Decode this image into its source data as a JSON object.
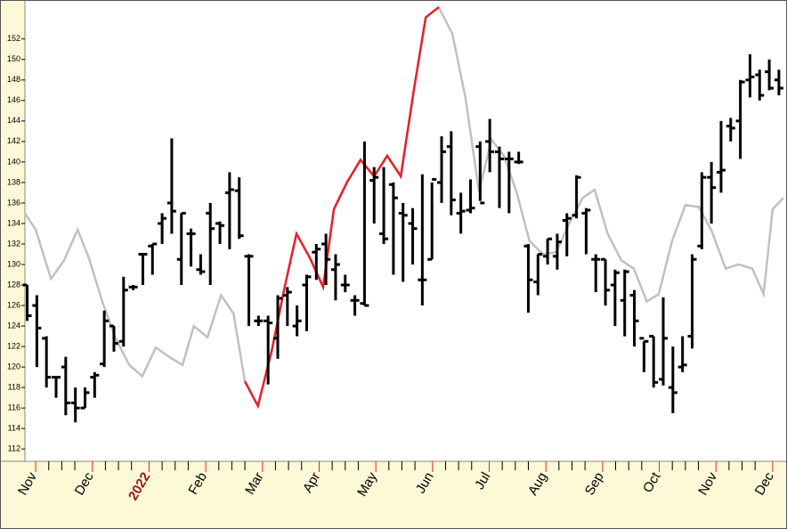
{
  "chart_data": {
    "type": "ohlc",
    "color": "#000000",
    "x": [
      -0.15,
      0.02,
      0.19,
      0.36,
      0.53,
      0.7,
      0.87,
      1.04,
      1.21,
      1.38,
      1.55,
      1.72,
      1.89,
      2.06,
      2.23,
      2.4,
      2.57,
      2.74,
      2.91,
      3.08,
      3.25,
      3.42,
      3.59,
      3.76,
      3.93,
      4.1,
      4.27,
      4.44,
      4.61,
      4.78,
      4.95,
      5.12,
      5.29,
      5.46,
      5.63,
      5.8,
      5.97,
      6.14,
      6.31,
      6.48,
      6.65,
      6.82,
      6.99,
      7.16,
      7.33,
      7.5,
      7.67,
      7.84,
      8.01,
      8.18,
      8.35,
      8.52,
      8.69,
      8.86,
      9.03,
      9.2,
      9.37,
      9.54,
      9.71,
      9.88,
      10.05,
      10.22,
      10.39,
      10.56,
      10.73,
      10.9,
      11.07,
      11.24,
      11.41,
      11.58,
      11.75,
      11.92,
      12.09,
      12.26,
      12.43,
      12.6,
      12.77,
      12.94,
      13.11
    ],
    "open": [
      128,
      126,
      122.8,
      119,
      120,
      116.5,
      116,
      119,
      120.3,
      124,
      122.5,
      127.8,
      131,
      131.8,
      134,
      136,
      130.5,
      133,
      129.5,
      135,
      134,
      137,
      137.2,
      130.8,
      124.5,
      124.5,
      122.8,
      127,
      124,
      128,
      131.2,
      132,
      129.5,
      128,
      126.5,
      126.2,
      138.2,
      133,
      137.8,
      135,
      134,
      128.5,
      130.5,
      138,
      141.5,
      135,
      135.3,
      141.5,
      142,
      141,
      140.3,
      140,
      131.8,
      128.3,
      130.8,
      130.8,
      134.3,
      134.8,
      135,
      130.5,
      130.5,
      128,
      126.5,
      127,
      122.8,
      123,
      118.8,
      118,
      120,
      123,
      131.8,
      138.5,
      139,
      143.5,
      144,
      148,
      148.5,
      148.8,
      148
    ],
    "high": [
      128,
      127,
      123,
      119,
      121,
      118,
      118,
      119.5,
      125.5,
      124,
      128.8,
      128,
      131,
      132,
      135,
      142.3,
      135,
      133.5,
      131,
      136,
      134.2,
      139,
      138.5,
      131,
      125,
      125,
      127,
      127.8,
      126,
      129,
      132,
      133,
      131,
      129,
      127,
      142,
      139.5,
      139.5,
      138,
      136,
      135.5,
      138.8,
      138,
      142.5,
      143,
      137,
      138.3,
      142,
      144.2,
      141.5,
      141,
      141,
      132,
      131,
      132.5,
      133,
      135,
      138.7,
      135.5,
      131,
      130.5,
      129.5,
      129.5,
      127.5,
      122.5,
      123,
      126.8,
      122,
      123,
      131,
      139,
      140,
      144,
      144.3,
      148,
      150.5,
      149,
      150,
      149
    ],
    "low": [
      124.5,
      120,
      118,
      117,
      115.3,
      114.6,
      116,
      117,
      120,
      121.5,
      122,
      127.5,
      128,
      129,
      132,
      133,
      128,
      129.8,
      129,
      128,
      132,
      131.5,
      132.5,
      124,
      124,
      118.3,
      120.8,
      124,
      123,
      123.5,
      128.5,
      128,
      126.5,
      127.3,
      125,
      126,
      134,
      132,
      129,
      128.3,
      130,
      126,
      130.5,
      136,
      134.8,
      133,
      135,
      136.2,
      139,
      135.5,
      135,
      139.8,
      125.3,
      127,
      130,
      129.5,
      130.8,
      134.5,
      131,
      127.3,
      126,
      124,
      123,
      122,
      119.5,
      118,
      118.2,
      115.5,
      119.5,
      121.8,
      131.5,
      134,
      137,
      142,
      140.3,
      146.3,
      146,
      147,
      146.5
    ],
    "close": [
      125,
      123.8,
      119,
      119,
      116.5,
      116,
      117.5,
      119.2,
      124.5,
      122.3,
      127.5,
      127.8,
      131,
      132,
      134.5,
      135.2,
      135,
      133,
      129.3,
      133.5,
      133.8,
      137.3,
      132.8,
      130.8,
      124.5,
      124.3,
      126.7,
      127.3,
      124.5,
      128.8,
      131.5,
      130.5,
      130,
      128,
      126.5,
      126,
      138.5,
      132.5,
      136.5,
      134.8,
      133.5,
      128.5,
      138.3,
      141,
      136.3,
      135.2,
      135.5,
      136,
      141,
      140.3,
      140.3,
      140,
      128.5,
      131,
      132.5,
      132.2,
      134.5,
      138.5,
      135.3,
      130.5,
      127.5,
      129.2,
      129.3,
      124.5,
      122.5,
      118.5,
      122.8,
      117.5,
      120.2,
      130.5,
      138.5,
      137.5,
      139.2,
      143.3,
      147.8,
      148.3,
      146.5,
      147.2,
      147.2
    ],
    "overlays": [
      {
        "color": "#c0c0c0",
        "x": [
          -0.19,
          0,
          0.27,
          0.5,
          0.74,
          0.94,
          1.18,
          1.41,
          1.65,
          1.88,
          2.12,
          2.35,
          2.59,
          2.79,
          3.03,
          3.27,
          3.49,
          3.69,
          3.92,
          4.16,
          4.4,
          4.6,
          4.84,
          5.07,
          5.26,
          5.49,
          5.73,
          5.97,
          6.2,
          6.44,
          6.67,
          6.88,
          7.11,
          7.35,
          7.58,
          7.82,
          8.04,
          8.26,
          8.48,
          8.71,
          8.95,
          9.18,
          9.42,
          9.65,
          9.86,
          10.09,
          10.33,
          10.55,
          10.78,
          10.99,
          11.22,
          11.46,
          11.7,
          11.93,
          12.17,
          12.4,
          12.64,
          12.84,
          13,
          13.19
        ],
        "values": [
          135,
          133.4,
          128.6,
          130.4,
          133.4,
          130.6,
          126.3,
          122.8,
          120.2,
          119.1,
          121.9,
          121,
          120.2,
          124,
          122.9,
          127,
          125.2,
          118.6,
          116.2,
          121.5,
          128,
          133,
          130.6,
          127.8,
          135.4,
          138,
          140.2,
          138.6,
          140.6,
          138.6,
          147,
          154.1,
          155.1,
          152.5,
          146.3,
          137.1,
          142.2,
          140.6,
          137.1,
          132.3,
          131,
          131.2,
          134.1,
          136.5,
          137.3,
          133,
          130.4,
          129.6,
          126.4,
          127.1,
          132.2,
          135.8,
          135.6,
          133.2,
          129.6,
          130,
          129.6,
          127.1,
          135.4,
          136.5
        ]
      },
      {
        "color": "#e8202a",
        "x": [
          3.69,
          3.92,
          4.16,
          4.4,
          4.6,
          4.84,
          5.07,
          5.26,
          5.49,
          5.73,
          5.97,
          6.2,
          6.44,
          6.67,
          6.88,
          7.11
        ],
        "values": [
          118.6,
          116.2,
          121.5,
          128,
          133,
          130.6,
          127.8,
          135.4,
          138,
          140.2,
          138.6,
          140.6,
          138.6,
          147,
          154.1,
          155.1
        ]
      }
    ],
    "xlim": [
      -0.19,
      13.19
    ],
    "xticks": [
      {
        "value": 0,
        "label": "Nov"
      },
      {
        "value": 1,
        "label": "Dec"
      },
      {
        "value": 2,
        "label": "2022",
        "color": "#8b1a1a"
      },
      {
        "value": 3,
        "label": "Feb"
      },
      {
        "value": 4,
        "label": "Mar"
      },
      {
        "value": 5,
        "label": "Apr"
      },
      {
        "value": 6,
        "label": "May"
      },
      {
        "value": 7,
        "label": "Jun"
      },
      {
        "value": 8,
        "label": "Jul"
      },
      {
        "value": 9,
        "label": "Aug"
      },
      {
        "value": 10,
        "label": "Sep"
      },
      {
        "value": 11,
        "label": "Oct"
      },
      {
        "value": 12,
        "label": "Nov"
      },
      {
        "value": 13,
        "label": "Dec"
      }
    ],
    "xminorticks": [
      0.23,
      0.46,
      0.69,
      1.23,
      1.46,
      1.69,
      2.23,
      2.46,
      2.69,
      3.23,
      3.46,
      3.69,
      4.23,
      4.46,
      4.69,
      5.23,
      5.46,
      5.69,
      6.23,
      6.46,
      6.69,
      7.23,
      7.46,
      7.69,
      8.23,
      8.46,
      8.69,
      9.23,
      9.46,
      9.69,
      10.23,
      10.46,
      10.69,
      11.23,
      11.46,
      11.69,
      12.23,
      12.46,
      12.69
    ],
    "ylim": [
      110.8,
      155.8
    ],
    "yticks": [
      112,
      114,
      116,
      118,
      120,
      122,
      124,
      126,
      128,
      130,
      132,
      134,
      136,
      138,
      140,
      142,
      144,
      146,
      148,
      150,
      152
    ]
  }
}
